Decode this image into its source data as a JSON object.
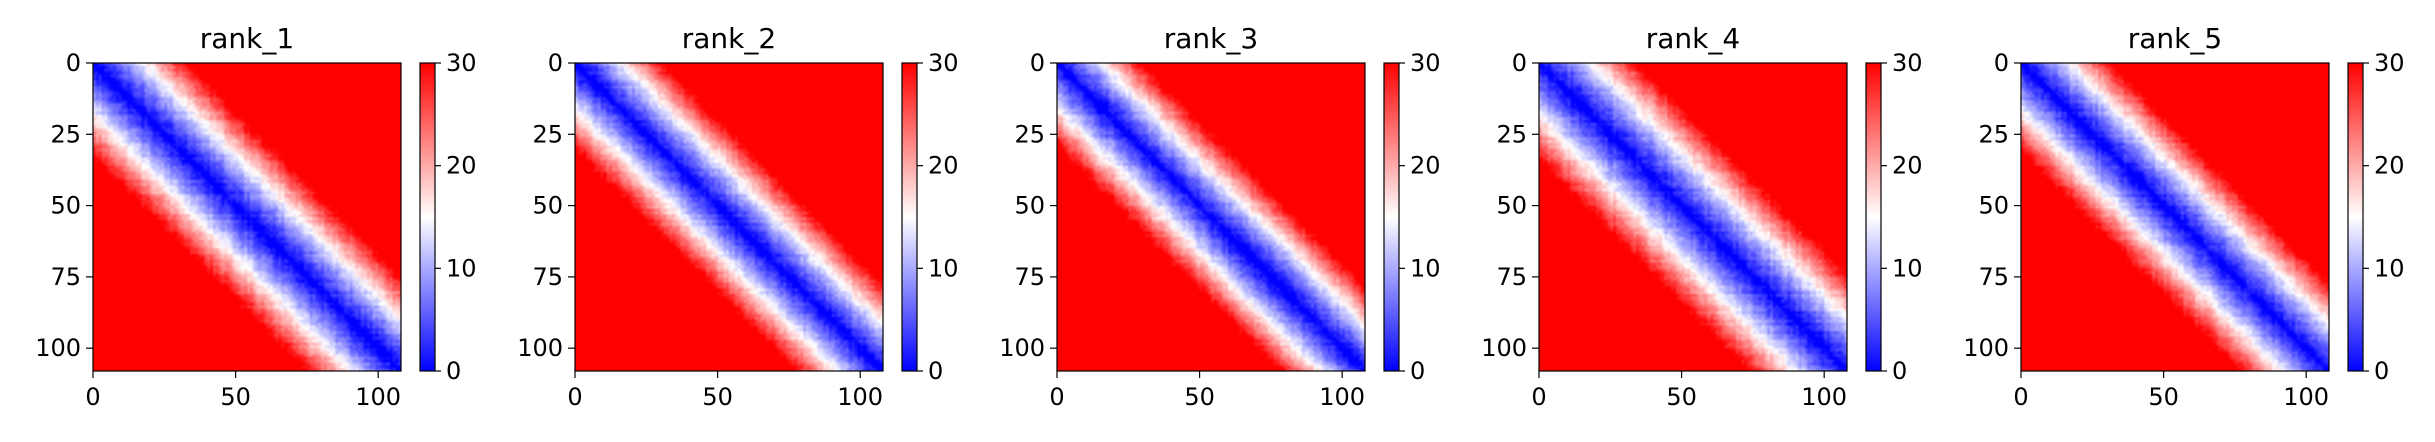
{
  "chart_data": [
    {
      "type": "heatmap",
      "title": "rank_1",
      "matrix_size": 108,
      "x_ticks": [
        0,
        50,
        100
      ],
      "y_ticks": [
        0,
        25,
        50,
        75,
        100
      ],
      "xlim": [
        0,
        108
      ],
      "ylim": [
        108,
        0
      ],
      "colorbar": {
        "vmin": 0,
        "vmax": 30,
        "ticks": [
          0,
          10,
          20,
          30
        ]
      },
      "colormap": [
        "#0000ff",
        "#ffffff",
        "#ff0000"
      ],
      "pattern": {
        "diagonal_value": 0,
        "band_growth_per_index": 0.55,
        "saturation_value": 30
      }
    },
    {
      "type": "heatmap",
      "title": "rank_2",
      "matrix_size": 108,
      "x_ticks": [
        0,
        50,
        100
      ],
      "y_ticks": [
        0,
        25,
        50,
        75,
        100
      ],
      "xlim": [
        0,
        108
      ],
      "ylim": [
        108,
        0
      ],
      "colorbar": {
        "vmin": 0,
        "vmax": 30,
        "ticks": [
          0,
          10,
          20,
          30
        ]
      },
      "colormap": [
        "#0000ff",
        "#ffffff",
        "#ff0000"
      ],
      "pattern": {
        "diagonal_value": 0,
        "band_growth_per_index": 0.6,
        "saturation_value": 30
      }
    },
    {
      "type": "heatmap",
      "title": "rank_3",
      "matrix_size": 108,
      "x_ticks": [
        0,
        50,
        100
      ],
      "y_ticks": [
        0,
        25,
        50,
        75,
        100
      ],
      "xlim": [
        0,
        108
      ],
      "ylim": [
        108,
        0
      ],
      "colorbar": {
        "vmin": 0,
        "vmax": 30,
        "ticks": [
          0,
          10,
          20,
          30
        ]
      },
      "colormap": [
        "#0000ff",
        "#ffffff",
        "#ff0000"
      ],
      "pattern": {
        "diagonal_value": 0,
        "band_growth_per_index": 0.62,
        "saturation_value": 30
      }
    },
    {
      "type": "heatmap",
      "title": "rank_4",
      "matrix_size": 108,
      "x_ticks": [
        0,
        50,
        100
      ],
      "y_ticks": [
        0,
        25,
        50,
        75,
        100
      ],
      "xlim": [
        0,
        108
      ],
      "ylim": [
        108,
        0
      ],
      "colorbar": {
        "vmin": 0,
        "vmax": 30,
        "ticks": [
          0,
          10,
          20,
          30
        ]
      },
      "colormap": [
        "#0000ff",
        "#ffffff",
        "#ff0000"
      ],
      "pattern": {
        "diagonal_value": 0,
        "band_growth_per_index": 0.52,
        "saturation_value": 30
      }
    },
    {
      "type": "heatmap",
      "title": "rank_5",
      "matrix_size": 108,
      "x_ticks": [
        0,
        50,
        100
      ],
      "y_ticks": [
        0,
        25,
        50,
        75,
        100
      ],
      "xlim": [
        0,
        108
      ],
      "ylim": [
        108,
        0
      ],
      "colorbar": {
        "vmin": 0,
        "vmax": 30,
        "ticks": [
          0,
          10,
          20,
          30
        ]
      },
      "colormap": [
        "#0000ff",
        "#ffffff",
        "#ff0000"
      ],
      "pattern": {
        "diagonal_value": 0,
        "band_growth_per_index": 0.58,
        "saturation_value": 30
      }
    }
  ]
}
